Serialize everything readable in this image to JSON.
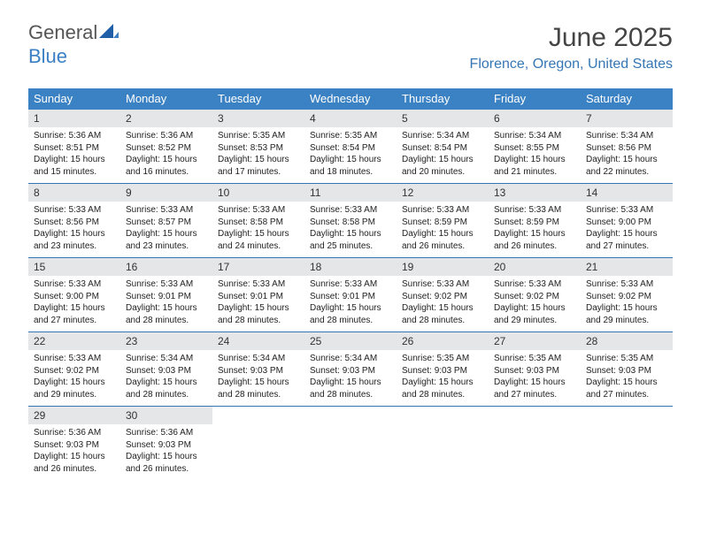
{
  "logo": {
    "part1": "General",
    "part2": "Blue"
  },
  "title": "June 2025",
  "subtitle": "Florence, Oregon, United States",
  "colors": {
    "header_bg": "#3b82c4",
    "header_text": "#ffffff",
    "daynum_bg": "#e4e6e8",
    "rule": "#3576b5",
    "subtitle": "#3576b5",
    "logo_blue": "#3b7fc4"
  },
  "weekdays": [
    "Sunday",
    "Monday",
    "Tuesday",
    "Wednesday",
    "Thursday",
    "Friday",
    "Saturday"
  ],
  "weeks": [
    [
      {
        "n": 1,
        "sr": "5:36 AM",
        "ss": "8:51 PM",
        "dl": "15 hours and 15 minutes."
      },
      {
        "n": 2,
        "sr": "5:36 AM",
        "ss": "8:52 PM",
        "dl": "15 hours and 16 minutes."
      },
      {
        "n": 3,
        "sr": "5:35 AM",
        "ss": "8:53 PM",
        "dl": "15 hours and 17 minutes."
      },
      {
        "n": 4,
        "sr": "5:35 AM",
        "ss": "8:54 PM",
        "dl": "15 hours and 18 minutes."
      },
      {
        "n": 5,
        "sr": "5:34 AM",
        "ss": "8:54 PM",
        "dl": "15 hours and 20 minutes."
      },
      {
        "n": 6,
        "sr": "5:34 AM",
        "ss": "8:55 PM",
        "dl": "15 hours and 21 minutes."
      },
      {
        "n": 7,
        "sr": "5:34 AM",
        "ss": "8:56 PM",
        "dl": "15 hours and 22 minutes."
      }
    ],
    [
      {
        "n": 8,
        "sr": "5:33 AM",
        "ss": "8:56 PM",
        "dl": "15 hours and 23 minutes."
      },
      {
        "n": 9,
        "sr": "5:33 AM",
        "ss": "8:57 PM",
        "dl": "15 hours and 23 minutes."
      },
      {
        "n": 10,
        "sr": "5:33 AM",
        "ss": "8:58 PM",
        "dl": "15 hours and 24 minutes."
      },
      {
        "n": 11,
        "sr": "5:33 AM",
        "ss": "8:58 PM",
        "dl": "15 hours and 25 minutes."
      },
      {
        "n": 12,
        "sr": "5:33 AM",
        "ss": "8:59 PM",
        "dl": "15 hours and 26 minutes."
      },
      {
        "n": 13,
        "sr": "5:33 AM",
        "ss": "8:59 PM",
        "dl": "15 hours and 26 minutes."
      },
      {
        "n": 14,
        "sr": "5:33 AM",
        "ss": "9:00 PM",
        "dl": "15 hours and 27 minutes."
      }
    ],
    [
      {
        "n": 15,
        "sr": "5:33 AM",
        "ss": "9:00 PM",
        "dl": "15 hours and 27 minutes."
      },
      {
        "n": 16,
        "sr": "5:33 AM",
        "ss": "9:01 PM",
        "dl": "15 hours and 28 minutes."
      },
      {
        "n": 17,
        "sr": "5:33 AM",
        "ss": "9:01 PM",
        "dl": "15 hours and 28 minutes."
      },
      {
        "n": 18,
        "sr": "5:33 AM",
        "ss": "9:01 PM",
        "dl": "15 hours and 28 minutes."
      },
      {
        "n": 19,
        "sr": "5:33 AM",
        "ss": "9:02 PM",
        "dl": "15 hours and 28 minutes."
      },
      {
        "n": 20,
        "sr": "5:33 AM",
        "ss": "9:02 PM",
        "dl": "15 hours and 29 minutes."
      },
      {
        "n": 21,
        "sr": "5:33 AM",
        "ss": "9:02 PM",
        "dl": "15 hours and 29 minutes."
      }
    ],
    [
      {
        "n": 22,
        "sr": "5:33 AM",
        "ss": "9:02 PM",
        "dl": "15 hours and 29 minutes."
      },
      {
        "n": 23,
        "sr": "5:34 AM",
        "ss": "9:03 PM",
        "dl": "15 hours and 28 minutes."
      },
      {
        "n": 24,
        "sr": "5:34 AM",
        "ss": "9:03 PM",
        "dl": "15 hours and 28 minutes."
      },
      {
        "n": 25,
        "sr": "5:34 AM",
        "ss": "9:03 PM",
        "dl": "15 hours and 28 minutes."
      },
      {
        "n": 26,
        "sr": "5:35 AM",
        "ss": "9:03 PM",
        "dl": "15 hours and 28 minutes."
      },
      {
        "n": 27,
        "sr": "5:35 AM",
        "ss": "9:03 PM",
        "dl": "15 hours and 27 minutes."
      },
      {
        "n": 28,
        "sr": "5:35 AM",
        "ss": "9:03 PM",
        "dl": "15 hours and 27 minutes."
      }
    ],
    [
      {
        "n": 29,
        "sr": "5:36 AM",
        "ss": "9:03 PM",
        "dl": "15 hours and 26 minutes."
      },
      {
        "n": 30,
        "sr": "5:36 AM",
        "ss": "9:03 PM",
        "dl": "15 hours and 26 minutes."
      },
      null,
      null,
      null,
      null,
      null
    ]
  ]
}
